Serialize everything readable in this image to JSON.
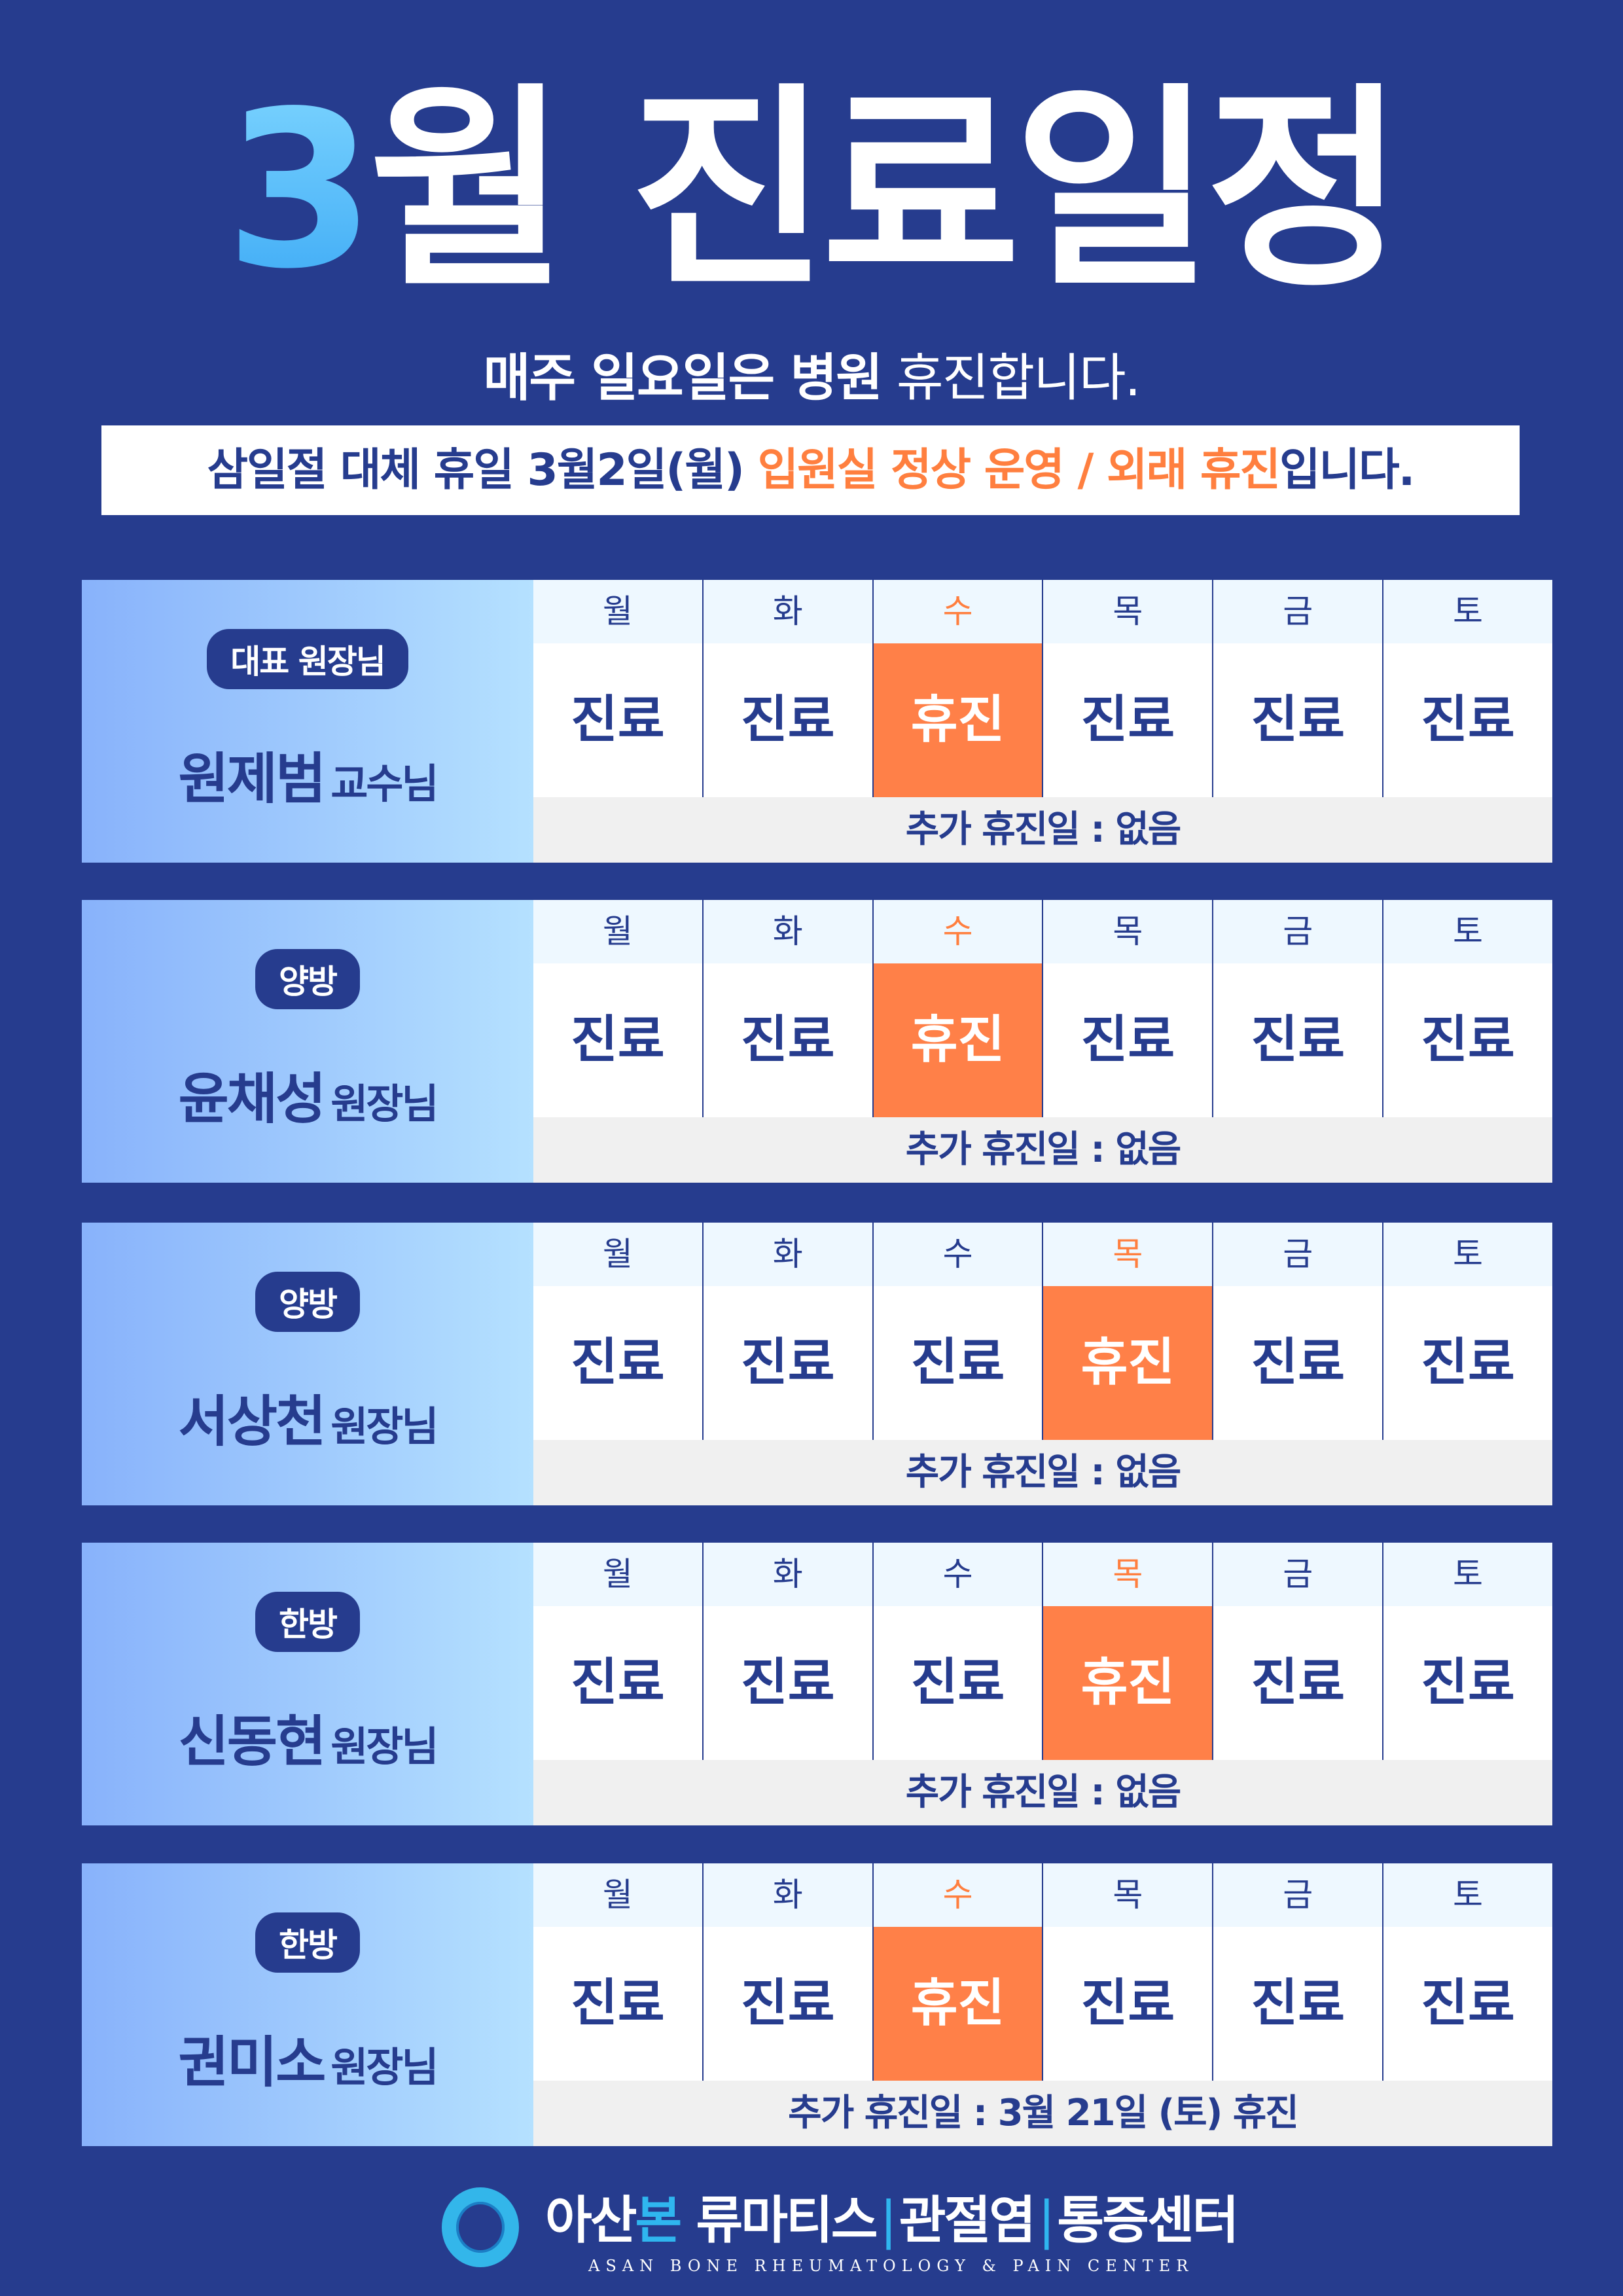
{
  "header": {
    "title_num": "3",
    "title_rest": "월 진료일정",
    "subtitle_bold": "매주 일요일은 병원",
    "subtitle_regular": " 휴진합니다."
  },
  "notice": {
    "part1": "삼일절 대체 휴일 3월2일(월) ",
    "highlight": "입원실 정상 운영 / 외래 휴진",
    "part2": "입니다."
  },
  "days": [
    "월",
    "화",
    "수",
    "목",
    "금",
    "토"
  ],
  "status_labels": {
    "work": "진료",
    "off": "휴진"
  },
  "colors": {
    "background": "#263c8e",
    "accent": "#ff8048",
    "title_num": "#56c3ff"
  },
  "doctors": [
    {
      "badge": "대표 원장님",
      "name": "원제범",
      "role": "교수님",
      "off_day": "수",
      "extra": "추가 휴진일 : 없음"
    },
    {
      "badge": "양방",
      "name": "윤채성",
      "role": "원장님",
      "off_day": "수",
      "extra": "추가 휴진일 : 없음"
    },
    {
      "badge": "양방",
      "name": "서상천",
      "role": "원장님",
      "off_day": "목",
      "extra": "추가 휴진일 : 없음"
    },
    {
      "badge": "한방",
      "name": "신동현",
      "role": "원장님",
      "off_day": "목",
      "extra": "추가 휴진일 : 없음"
    },
    {
      "badge": "한방",
      "name": "권미소",
      "role": "원장님",
      "off_day": "수",
      "extra": "추가 휴진일 : 3월 21일 (토) 휴진"
    }
  ],
  "footer": {
    "logo_kr_1": "아산",
    "logo_kr_2": "본",
    "logo_kr_3": " 류마티스",
    "sep": "|",
    "logo_kr_4": "관절염",
    "logo_kr_5": "통증센터",
    "logo_en": "ASAN BONE RHEUMATOLOGY & PAIN CENTER"
  }
}
